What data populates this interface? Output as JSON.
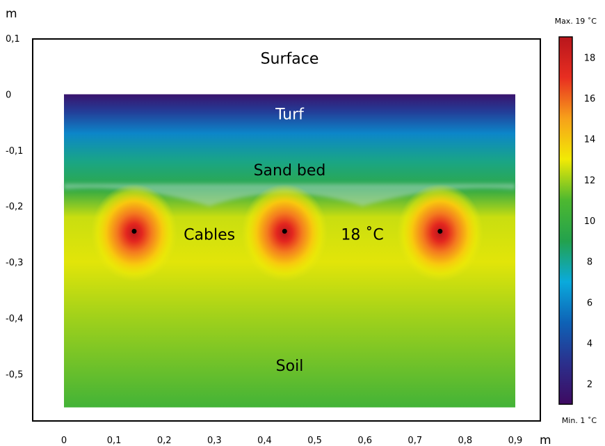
{
  "chart_data": {
    "type": "heatmap",
    "title": "",
    "xlabel": "m",
    "ylabel": "m",
    "x_ticks": [
      "0",
      "0,1",
      "0,2",
      "0,3",
      "0,4",
      "0,5",
      "0,6",
      "0,7",
      "0,8",
      "0,9"
    ],
    "x_tick_values": [
      0,
      0.1,
      0.2,
      0.3,
      0.4,
      0.5,
      0.6,
      0.7,
      0.8,
      0.9
    ],
    "y_ticks": [
      "0,1",
      "0",
      "-0,1",
      "-0,2",
      "-0,3",
      "-0,4",
      "-0,5"
    ],
    "y_tick_values": [
      0.1,
      0,
      -0.1,
      -0.2,
      -0.3,
      -0.4,
      -0.5
    ],
    "xlim": [
      -0.06,
      0.95
    ],
    "ylim": [
      -0.6,
      0.1
    ],
    "field_extent": {
      "x": [
        0,
        0.9
      ],
      "y": [
        -0.56,
        0.0
      ]
    },
    "colorbar": {
      "max_label": "Max. 19 ˚C",
      "min_label": "Min. 1 ˚C",
      "ticks": [
        "2",
        "4",
        "6",
        "8",
        "10",
        "12",
        "14",
        "16",
        "18"
      ],
      "tick_values": [
        2,
        4,
        6,
        8,
        10,
        12,
        14,
        16,
        18
      ],
      "range": [
        1,
        19
      ],
      "colors": [
        "#3e0a61",
        "#2b2f8c",
        "#0e62b6",
        "#0aaadc",
        "#23a24d",
        "#4db830",
        "#f2ea05",
        "#f7a11a",
        "#e82e21",
        "#b8161c"
      ]
    },
    "layer_profile": [
      {
        "depth": 0.0,
        "temperature": 1.5
      },
      {
        "depth": -0.03,
        "temperature": 3.5
      },
      {
        "depth": -0.07,
        "temperature": 6.0
      },
      {
        "depth": -0.12,
        "temperature": 8.2
      },
      {
        "depth": -0.17,
        "temperature": 9.6
      },
      {
        "depth": -0.22,
        "temperature": 12.5
      },
      {
        "depth": -0.3,
        "temperature": 12.8
      },
      {
        "depth": -0.4,
        "temperature": 12.0
      },
      {
        "depth": -0.56,
        "temperature": 10.5
      }
    ],
    "cables": [
      {
        "x": 0.14,
        "y": -0.245,
        "temperature": 18
      },
      {
        "x": 0.44,
        "y": -0.245,
        "temperature": 18
      },
      {
        "x": 0.75,
        "y": -0.245,
        "temperature": 18
      }
    ],
    "annotations": [
      {
        "text": "Surface",
        "x": 0.45,
        "y": 0.065,
        "color": "#000000"
      },
      {
        "text": "Turf",
        "x": 0.45,
        "y": -0.035,
        "color": "#ffffff"
      },
      {
        "text": "Sand bed",
        "x": 0.45,
        "y": -0.135,
        "color": "#000000"
      },
      {
        "text": "Cables",
        "x": 0.29,
        "y": -0.25,
        "color": "#000000"
      },
      {
        "text": "18 ˚C",
        "x": 0.595,
        "y": -0.25,
        "color": "#000000"
      },
      {
        "text": "Soil",
        "x": 0.45,
        "y": -0.485,
        "color": "#000000"
      }
    ]
  }
}
